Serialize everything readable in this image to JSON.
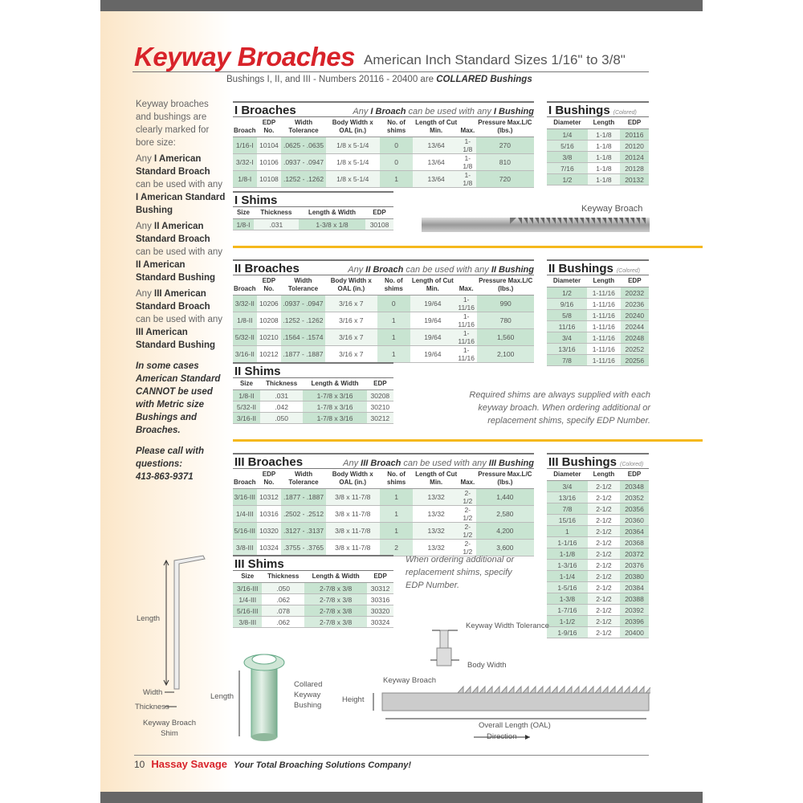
{
  "header": {
    "title": "Keyway Broaches",
    "subtitle": "American Inch Standard Sizes 1/16\" to 3/8\"",
    "note_prefix": "Bushings I, II, and III - Numbers 20116 - 20400 are ",
    "note_bold": "COLLARED Bushings"
  },
  "sidebar": {
    "intro": "Keyway broaches and bushings are clearly marked for bore size:",
    "items": [
      {
        "a": "Any ",
        "b1": "I American Standard Broach",
        "c": " can be used with any ",
        "b2": "I American Standard Bushing"
      },
      {
        "a": "Any ",
        "b1": "II American Standard Broach",
        "c": " can be used with any ",
        "b2": "II American Standard Bushing"
      },
      {
        "a": "Any ",
        "b1": "III American Standard Broach",
        "c": " can be used with any ",
        "b2": "III American Standard Bushing"
      }
    ],
    "warning": "In some cases American Standard CANNOT be used with Metric size Bushings and Broaches.",
    "call": "Please call with questions:",
    "phone": "413-863-9371"
  },
  "broach_headers": [
    "Broach",
    "EDP No.",
    "Width Tolerance",
    "Body Width x OAL (in.)",
    "No. of shims",
    "Length of Cut Min.",
    "Max.",
    "Pressure Max.L/C (lbs.)"
  ],
  "bushing_headers": [
    "Diameter",
    "Length",
    "EDP"
  ],
  "shim_headers": [
    "Size",
    "Thickness",
    "Length & Width",
    "EDP"
  ],
  "colored": "(Colored)",
  "sections": {
    "b1": {
      "title": "I Broaches",
      "note_a": "Any ",
      "note_b": "I Broach",
      "note_c": " can be used with any ",
      "note_d": "I Bushing",
      "rows": [
        [
          "1/16-I",
          "10104",
          ".0625 - .0635",
          "1/8 x 5-1/4",
          "0",
          "13/64",
          "1-1/8",
          "270"
        ],
        [
          "3/32-I",
          "10106",
          ".0937 - .0947",
          "1/8 x 5-1/4",
          "0",
          "13/64",
          "1-1/8",
          "810"
        ],
        [
          "1/8-I",
          "10108",
          ".1252 - .1262",
          "1/8 x 5-1/4",
          "1",
          "13/64",
          "1-1/8",
          "720"
        ]
      ]
    },
    "u1": {
      "title": "I Bushings",
      "rows": [
        [
          "1/4",
          "1-1/8",
          "20116"
        ],
        [
          "5/16",
          "1-1/8",
          "20120"
        ],
        [
          "3/8",
          "1-1/8",
          "20124"
        ],
        [
          "7/16",
          "1-1/8",
          "20128"
        ],
        [
          "1/2",
          "1-1/8",
          "20132"
        ]
      ]
    },
    "s1": {
      "title": "I Shims",
      "rows": [
        [
          "1/8-I",
          ".031",
          "1-3/8 x 1/8",
          "30108"
        ]
      ]
    },
    "b2": {
      "title": "II Broaches",
      "note_a": "Any ",
      "note_b": "II Broach",
      "note_c": " can be used with any ",
      "note_d": "II Bushing",
      "rows": [
        [
          "3/32-II",
          "10206",
          ".0937 - .0947",
          "3/16 x 7",
          "0",
          "19/64",
          "1-11/16",
          "990"
        ],
        [
          "1/8-II",
          "10208",
          ".1252 - .1262",
          "3/16 x 7",
          "1",
          "19/64",
          "1-11/16",
          "780"
        ],
        [
          "5/32-II",
          "10210",
          ".1564 - .1574",
          "3/16 x 7",
          "1",
          "19/64",
          "1-11/16",
          "1,560"
        ],
        [
          "3/16-II",
          "10212",
          ".1877 - .1887",
          "3/16 x 7",
          "1",
          "19/64",
          "1-11/16",
          "2,100"
        ]
      ]
    },
    "u2": {
      "title": "II Bushings",
      "rows": [
        [
          "1/2",
          "1-11/16",
          "20232"
        ],
        [
          "9/16",
          "1-11/16",
          "20236"
        ],
        [
          "5/8",
          "1-11/16",
          "20240"
        ],
        [
          "11/16",
          "1-11/16",
          "20244"
        ],
        [
          "3/4",
          "1-11/16",
          "20248"
        ],
        [
          "13/16",
          "1-11/16",
          "20252"
        ],
        [
          "7/8",
          "1-11/16",
          "20256"
        ]
      ]
    },
    "s2": {
      "title": "II Shims",
      "rows": [
        [
          "1/8-II",
          ".031",
          "1-7/8 x 3/16",
          "30208"
        ],
        [
          "5/32-II",
          ".042",
          "1-7/8 x 3/16",
          "30210"
        ],
        [
          "3/16-II",
          ".050",
          "1-7/8 x 3/16",
          "30212"
        ]
      ]
    },
    "b3": {
      "title": "III Broaches",
      "note_a": "Any ",
      "note_b": "III Broach",
      "note_c": " can be used with any ",
      "note_d": "III Bushing",
      "rows": [
        [
          "3/16-III",
          "10312",
          ".1877 - .1887",
          "3/8 x 11-7/8",
          "1",
          "13/32",
          "2-1/2",
          "1,440"
        ],
        [
          "1/4-III",
          "10316",
          ".2502 - .2512",
          "3/8 x 11-7/8",
          "1",
          "13/32",
          "2-1/2",
          "2,580"
        ],
        [
          "5/16-III",
          "10320",
          ".3127 - .3137",
          "3/8 x 11-7/8",
          "1",
          "13/32",
          "2-1/2",
          "4,200"
        ],
        [
          "3/8-III",
          "10324",
          ".3755 - .3765",
          "3/8 x 11-7/8",
          "2",
          "13/32",
          "2-1/2",
          "3,600"
        ]
      ]
    },
    "u3": {
      "title": "III Bushings",
      "rows": [
        [
          "3/4",
          "2-1/2",
          "20348"
        ],
        [
          "13/16",
          "2-1/2",
          "20352"
        ],
        [
          "7/8",
          "2-1/2",
          "20356"
        ],
        [
          "15/16",
          "2-1/2",
          "20360"
        ],
        [
          "1",
          "2-1/2",
          "20364"
        ],
        [
          "1-1/16",
          "2-1/2",
          "20368"
        ],
        [
          "1-1/8",
          "2-1/2",
          "20372"
        ],
        [
          "1-3/16",
          "2-1/2",
          "20376"
        ],
        [
          "1-1/4",
          "2-1/2",
          "20380"
        ],
        [
          "1-5/16",
          "2-1/2",
          "20384"
        ],
        [
          "1-3/8",
          "2-1/2",
          "20388"
        ],
        [
          "1-7/16",
          "2-1/2",
          "20392"
        ],
        [
          "1-1/2",
          "2-1/2",
          "20396"
        ],
        [
          "1-9/16",
          "2-1/2",
          "20400"
        ]
      ]
    },
    "s3": {
      "title": "III Shims",
      "rows": [
        [
          "3/16-III",
          ".050",
          "2-7/8 x 3/8",
          "30312"
        ],
        [
          "1/4-III",
          ".062",
          "2-7/8 x 3/8",
          "30316"
        ],
        [
          "5/16-III",
          ".078",
          "2-7/8 x 3/8",
          "30320"
        ],
        [
          "3/8-III",
          ".062",
          "2-7/8 x 3/8",
          "30324"
        ]
      ]
    }
  },
  "notes": {
    "shims_required": "Required shims are always supplied with each keyway broach.  When ordering additional or replacement shims, specify EDP Number.",
    "shims_order": "When ordering additional or replacement shims, specify EDP Number."
  },
  "diagrams": {
    "broach_photo": "Keyway Broach",
    "shim_length": "Length",
    "shim_width": "Width",
    "shim_thickness": "Thickness",
    "shim_caption": "Keyway Broach Shim",
    "bushing_length": "Length",
    "bushing_caption": "Collared Keyway Bushing",
    "keyway_width": "Keyway Width Tolerance",
    "body_width": "Body Width",
    "kb_label": "Keyway Broach",
    "height": "Height",
    "oal": "Overall Length (OAL)",
    "direction": "Direction"
  },
  "footer": {
    "page": "10",
    "brand": "Hassay Savage",
    "tagline": "Your Total Broaching Solutions Company!"
  },
  "colors": {
    "title_red": "#d8232a",
    "accent_yellow": "#f5b81c",
    "table_green": "#d6ebdd"
  }
}
